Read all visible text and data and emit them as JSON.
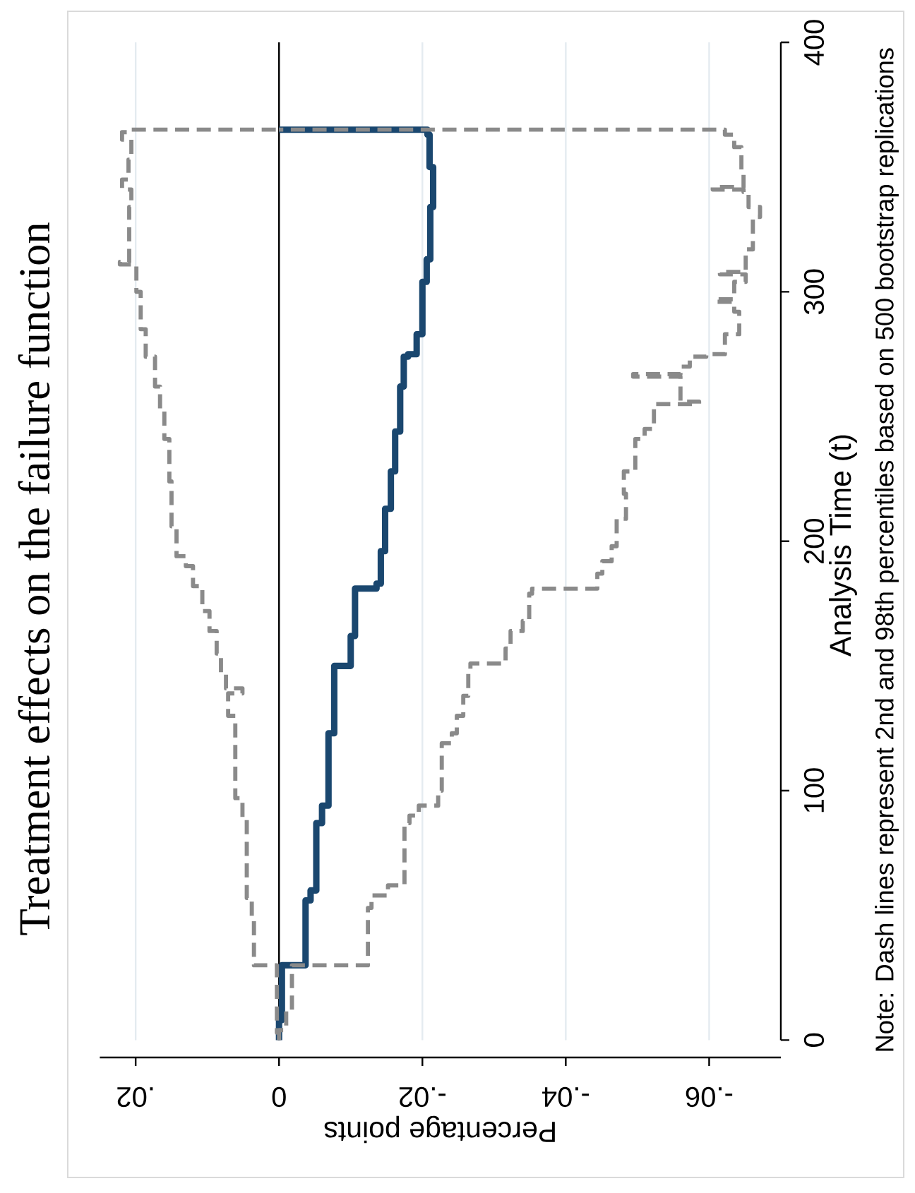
{
  "chart_data": {
    "type": "line",
    "title": "Treatment effects on the failure function",
    "xlabel": "Percentage points",
    "ylabel": "Analysis Time (t)",
    "annotations": [
      "Note: Dash lines represent 2nd and 98th percentiles based on 500 bootstrap replications"
    ],
    "xlim": [
      0.025,
      -0.07
    ],
    "ylim": [
      0,
      400
    ],
    "xticks": [
      {
        "value": 0.02,
        "label": ".02"
      },
      0,
      {
        "value": -0.02,
        "label": "-.02"
      },
      {
        "value": -0.04,
        "label": "-.04"
      },
      {
        "value": -0.06,
        "label": "-.06"
      }
    ],
    "yticks": [
      0,
      100,
      200,
      300,
      400
    ],
    "grid": "x",
    "ref_lines": [
      {
        "axis": "x",
        "value": 0,
        "color": "#000000"
      }
    ],
    "series": [
      {
        "color": "#1a476f",
        "line_style": "solid",
        "x": [
          0,
          0,
          -0.0004,
          -0.0004,
          -0.0037,
          -0.0037,
          -0.0044,
          -0.0044,
          -0.0052,
          -0.0052,
          -0.006,
          -0.006,
          -0.0069,
          -0.0069,
          -0.0077,
          -0.0077,
          -0.01,
          -0.01,
          -0.0106,
          -0.0106,
          -0.0136,
          -0.0136,
          -0.0142,
          -0.0142,
          -0.0148,
          -0.0148,
          -0.0156,
          -0.0156,
          -0.0162,
          -0.0162,
          -0.0169,
          -0.0169,
          -0.0174,
          -0.0174,
          -0.018,
          -0.018,
          -0.0192,
          -0.0192,
          -0.02,
          -0.02,
          -0.0206,
          -0.0206,
          -0.0211,
          -0.0211,
          -0.0215,
          -0.0215,
          -0.021,
          -0.021,
          -0.0207,
          -0.0207,
          0
        ],
        "values": [
          0,
          8,
          8,
          30,
          30,
          56,
          56,
          60,
          60,
          87,
          87,
          94,
          94,
          123,
          123,
          150,
          150,
          162,
          162,
          181,
          181,
          183,
          183,
          196,
          196,
          213,
          213,
          228,
          228,
          244,
          244,
          262,
          262,
          274,
          274,
          275,
          275,
          283,
          283,
          304,
          304,
          313,
          313,
          334,
          334,
          350,
          350,
          363,
          363,
          365,
          365
        ]
      },
      {
        "color": "#8a8a8a",
        "line_style": "dashed",
        "x": [
          0,
          0,
          0.0003,
          0.0003,
          0.0035,
          0.0035,
          0.0038,
          0.0038,
          0.0045,
          0.0045,
          0.0051,
          0.0051,
          0.0061,
          0.0061,
          0.0071,
          0.0071,
          0.0051,
          0.0051,
          0.0074,
          0.0074,
          0.0081,
          0.0081,
          0.0087,
          0.0087,
          0.0097,
          0.0097,
          0.0107,
          0.0107,
          0.012,
          0.012,
          0.013,
          0.013,
          0.0143,
          0.0143,
          0.015,
          0.015,
          0.0153,
          0.0153,
          0.016,
          0.016,
          0.0166,
          0.0166,
          0.0173,
          0.0173,
          0.0186,
          0.0186,
          0.0193,
          0.0193,
          0.0199,
          0.0199,
          0.0222,
          0.0222,
          0.0209,
          0.0209,
          0.0206,
          0.0206,
          0.0219,
          0.0219,
          0.021,
          0.021,
          0.0206,
          0.0206,
          0.0219,
          0.0219,
          0.0206,
          0.0206,
          0,
          null,
          0,
          0,
          -0.001,
          -0.001,
          -0.0018,
          -0.0018,
          -0.0124,
          -0.0124,
          -0.0129,
          -0.0129,
          -0.0152,
          -0.0152,
          -0.0175,
          -0.0175,
          -0.0182,
          -0.0182,
          -0.0195,
          -0.0195,
          -0.0222,
          -0.0222,
          -0.0227,
          -0.0227,
          -0.0241,
          -0.0241,
          -0.0248,
          -0.0248,
          -0.0257,
          -0.0257,
          -0.0264,
          -0.0264,
          -0.0267,
          -0.0267,
          -0.0316,
          -0.0316,
          -0.0323,
          -0.0323,
          -0.034,
          -0.034,
          -0.0349,
          -0.0349,
          -0.0353,
          -0.0353,
          -0.0444,
          -0.0444,
          -0.0451,
          -0.0451,
          -0.0464,
          -0.0464,
          -0.0471,
          -0.0471,
          -0.0484,
          -0.0484,
          -0.0481,
          -0.0481,
          -0.0497,
          -0.0497,
          -0.051,
          -0.051,
          -0.0523,
          -0.0523,
          -0.0586,
          -0.0586,
          -0.056,
          -0.056,
          -0.0494,
          -0.0494,
          -0.056,
          -0.056,
          -0.0573,
          -0.0573,
          -0.0596,
          -0.0596,
          -0.0622,
          -0.0622,
          -0.0642,
          -0.0642,
          -0.0635,
          -0.0635,
          -0.0609,
          -0.0609,
          -0.0635,
          -0.0635,
          -0.0651,
          -0.0651,
          -0.0615,
          -0.0615,
          -0.0651,
          -0.0651,
          -0.0661,
          -0.0661,
          -0.0671,
          -0.0671,
          -0.0655,
          -0.0655,
          -0.0648,
          -0.0648,
          -0.0605,
          -0.0605,
          -0.0648,
          -0.0648,
          -0.0645,
          -0.0645,
          -0.0635,
          -0.0635,
          -0.0622,
          -0.0622,
          0
        ],
        "values": [
          0,
          3,
          3,
          30,
          30,
          49,
          49,
          57,
          57,
          89,
          89,
          97,
          97,
          130,
          130,
          139,
          139,
          141,
          141,
          147,
          147,
          155,
          155,
          164,
          164,
          172,
          172,
          182,
          182,
          190,
          190,
          194,
          194,
          206,
          206,
          224,
          224,
          241,
          241,
          253,
          253,
          262,
          262,
          274,
          274,
          285,
          285,
          300,
          300,
          311,
          311,
          312,
          312,
          334,
          334,
          341,
          341,
          345,
          345,
          353,
          353,
          361,
          361,
          364,
          364,
          365,
          365,
          null,
          0,
          4,
          4,
          12,
          12,
          30,
          30,
          53,
          53,
          58,
          58,
          62,
          62,
          87,
          87,
          90,
          90,
          94,
          94,
          100,
          100,
          119,
          119,
          123,
          123,
          130,
          130,
          138,
          138,
          147,
          147,
          151,
          151,
          157,
          157,
          164,
          164,
          168,
          168,
          179,
          179,
          181,
          181,
          187,
          187,
          192,
          192,
          198,
          198,
          209,
          209,
          219,
          219,
          228,
          228,
          241,
          241,
          245,
          245,
          255,
          255,
          256,
          256,
          266,
          266,
          267,
          267,
          270,
          270,
          274,
          274,
          275,
          275,
          283,
          283,
          292,
          292,
          296,
          296,
          297,
          297,
          304,
          304,
          307,
          307,
          308,
          308,
          317,
          317,
          330,
          330,
          334,
          334,
          340,
          340,
          341,
          341,
          342,
          342,
          349,
          349,
          358,
          358,
          363,
          363,
          365,
          365
        ]
      }
    ]
  }
}
